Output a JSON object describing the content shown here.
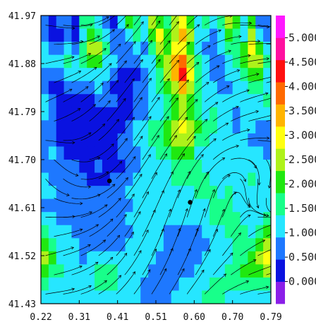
{
  "chart_data": {
    "type": "heatmap",
    "title": "",
    "xlabel": "",
    "ylabel": "",
    "x_ticks": [
      "0.22",
      "0.31",
      "0.41",
      "0.51",
      "0.60",
      "0.70",
      "0.79"
    ],
    "y_ticks": [
      "41.97",
      "41.88",
      "41.79",
      "41.70",
      "41.61",
      "41.52",
      "41.43"
    ],
    "xlim": [
      0.22,
      0.79
    ],
    "ylim": [
      41.43,
      41.97
    ],
    "overlay": "streamlines",
    "markers": [
      {
        "x": 0.39,
        "y": 41.66
      },
      {
        "x": 0.59,
        "y": 41.62
      }
    ],
    "colorbar": {
      "labels": [
        "0.000",
        "0.500",
        "1.000",
        "1.500",
        "2.000",
        "2.500",
        "3.000",
        "3.500",
        "4.000",
        "4.500",
        "5.000"
      ],
      "colors": [
        "#8b1fe8",
        "#0a12e0",
        "#1e78ff",
        "#26e6ff",
        "#18ff8a",
        "#20e810",
        "#aef21a",
        "#ffff10",
        "#ffb400",
        "#ff6a00",
        "#ff1010",
        "#ff10a0",
        "#ff18ff"
      ],
      "range": [
        0,
        5
      ]
    },
    "field_levels": [
      [
        2,
        1,
        2,
        2,
        1,
        4,
        4,
        3,
        2,
        1,
        3,
        5,
        4,
        3,
        6,
        5,
        4,
        6,
        7,
        5,
        3,
        4,
        3,
        4,
        6,
        5,
        3,
        5,
        2,
        2
      ],
      [
        2,
        1,
        1,
        2,
        1,
        3,
        5,
        4,
        3,
        2,
        2,
        3,
        4,
        3,
        5,
        7,
        5,
        6,
        8,
        6,
        3,
        3,
        2,
        3,
        5,
        4,
        3,
        6,
        3,
        2
      ],
      [
        3,
        2,
        2,
        3,
        2,
        4,
        6,
        6,
        4,
        2,
        2,
        2,
        3,
        2,
        4,
        6,
        5,
        7,
        7,
        5,
        3,
        2,
        2,
        3,
        4,
        4,
        5,
        7,
        5,
        3
      ],
      [
        3,
        3,
        3,
        4,
        3,
        4,
        5,
        5,
        3,
        3,
        2,
        2,
        2,
        3,
        3,
        5,
        6,
        8,
        9,
        6,
        4,
        3,
        2,
        2,
        3,
        4,
        5,
        6,
        6,
        4
      ],
      [
        2,
        2,
        2,
        3,
        3,
        3,
        3,
        3,
        3,
        2,
        1,
        1,
        1,
        2,
        3,
        4,
        6,
        8,
        10,
        7,
        4,
        3,
        2,
        2,
        3,
        3,
        4,
        5,
        5,
        3
      ],
      [
        2,
        1,
        1,
        2,
        2,
        2,
        2,
        3,
        2,
        1,
        1,
        1,
        2,
        2,
        3,
        4,
        5,
        6,
        8,
        6,
        4,
        3,
        3,
        2,
        2,
        3,
        3,
        4,
        4,
        3
      ],
      [
        3,
        2,
        1,
        1,
        1,
        1,
        1,
        2,
        2,
        2,
        1,
        1,
        2,
        2,
        3,
        3,
        4,
        5,
        6,
        5,
        4,
        3,
        3,
        3,
        3,
        3,
        3,
        3,
        3,
        4
      ],
      [
        3,
        2,
        1,
        1,
        1,
        1,
        1,
        1,
        1,
        1,
        1,
        1,
        2,
        2,
        3,
        3,
        4,
        5,
        6,
        5,
        4,
        3,
        4,
        3,
        3,
        2,
        3,
        3,
        3,
        3
      ],
      [
        2,
        2,
        1,
        1,
        1,
        1,
        1,
        1,
        1,
        1,
        1,
        2,
        3,
        3,
        4,
        4,
        5,
        6,
        7,
        6,
        5,
        4,
        4,
        3,
        3,
        2,
        3,
        3,
        2,
        2
      ],
      [
        2,
        2,
        1,
        1,
        1,
        1,
        1,
        1,
        1,
        1,
        2,
        2,
        3,
        3,
        4,
        4,
        5,
        6,
        6,
        6,
        4,
        4,
        3,
        3,
        3,
        3,
        3,
        2,
        2,
        2
      ],
      [
        2,
        3,
        2,
        1,
        1,
        1,
        1,
        1,
        1,
        1,
        2,
        2,
        2,
        3,
        3,
        4,
        4,
        5,
        5,
        5,
        3,
        3,
        3,
        3,
        3,
        3,
        3,
        3,
        3,
        2
      ],
      [
        2,
        2,
        2,
        2,
        2,
        1,
        1,
        2,
        1,
        1,
        1,
        2,
        2,
        3,
        3,
        3,
        3,
        4,
        4,
        4,
        4,
        3,
        3,
        3,
        3,
        3,
        3,
        3,
        3,
        3
      ],
      [
        3,
        2,
        2,
        2,
        2,
        2,
        1,
        1,
        1,
        2,
        2,
        2,
        3,
        3,
        3,
        3,
        3,
        4,
        4,
        4,
        4,
        4,
        3,
        3,
        3,
        3,
        3,
        4,
        3,
        3
      ],
      [
        3,
        3,
        2,
        2,
        2,
        2,
        2,
        2,
        2,
        2,
        2,
        3,
        3,
        3,
        3,
        3,
        3,
        3,
        3,
        3,
        4,
        4,
        4,
        3,
        4,
        3,
        3,
        3,
        3,
        3
      ],
      [
        2,
        2,
        2,
        2,
        2,
        2,
        2,
        2,
        2,
        2,
        2,
        2,
        3,
        3,
        3,
        3,
        3,
        3,
        3,
        3,
        3,
        3,
        4,
        4,
        4,
        3,
        3,
        3,
        3,
        3
      ],
      [
        3,
        3,
        2,
        2,
        2,
        2,
        2,
        2,
        2,
        2,
        2,
        3,
        3,
        3,
        3,
        3,
        3,
        3,
        3,
        3,
        3,
        3,
        4,
        4,
        4,
        4,
        3,
        3,
        3,
        4
      ],
      [
        4,
        3,
        3,
        3,
        2,
        2,
        2,
        2,
        2,
        2,
        2,
        2,
        3,
        3,
        3,
        3,
        2,
        2,
        2,
        2,
        2,
        3,
        3,
        3,
        4,
        4,
        4,
        3,
        4,
        5
      ],
      [
        5,
        4,
        3,
        3,
        3,
        2,
        2,
        2,
        2,
        2,
        2,
        3,
        3,
        3,
        3,
        3,
        2,
        2,
        2,
        2,
        2,
        2,
        3,
        3,
        3,
        4,
        4,
        4,
        5,
        6
      ],
      [
        6,
        5,
        3,
        3,
        3,
        2,
        3,
        3,
        3,
        3,
        3,
        3,
        3,
        3,
        3,
        2,
        2,
        2,
        2,
        2,
        2,
        3,
        3,
        3,
        3,
        4,
        4,
        5,
        6,
        7
      ],
      [
        5,
        4,
        4,
        3,
        3,
        3,
        3,
        4,
        4,
        4,
        3,
        3,
        3,
        3,
        2,
        2,
        2,
        2,
        2,
        2,
        3,
        3,
        3,
        3,
        4,
        4,
        5,
        5,
        5,
        6
      ],
      [
        4,
        3,
        3,
        3,
        3,
        3,
        3,
        4,
        4,
        4,
        3,
        3,
        3,
        2,
        2,
        2,
        2,
        2,
        3,
        3,
        3,
        3,
        4,
        4,
        4,
        4,
        4,
        4,
        4,
        4
      ],
      [
        3,
        3,
        3,
        3,
        3,
        3,
        3,
        3,
        3,
        3,
        3,
        3,
        3,
        2,
        2,
        2,
        2,
        3,
        3,
        3,
        3,
        4,
        4,
        4,
        3,
        3,
        3,
        3,
        3,
        3
      ]
    ]
  }
}
